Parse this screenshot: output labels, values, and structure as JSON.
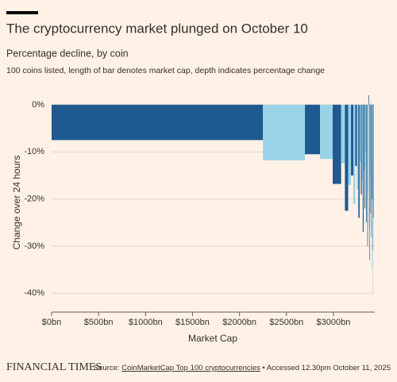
{
  "chart_data": {
    "type": "variwide",
    "title": "The cryptocurrency market plunged on October 10",
    "subtitle": "Percentage decline, by coin",
    "description": "100 coins listed, length of bar denotes market cap, depth indicates percentage change",
    "y_label": "Change over 24 hours",
    "x_label": "Market Cap",
    "colors": [
      "#1e5a91",
      "#9ad3e8"
    ],
    "market_cap": [
      2250,
      447,
      160,
      135,
      90,
      40,
      35,
      30,
      25,
      20,
      18,
      15,
      14,
      12,
      11,
      10,
      10,
      9,
      8,
      8,
      7,
      7,
      6,
      6,
      6,
      5,
      5,
      5,
      4,
      4,
      4,
      4,
      3,
      3,
      3,
      3,
      3
    ],
    "values": [
      -7.5,
      -11.8,
      -10.5,
      -11.5,
      -16.8,
      -12.4,
      -22.5,
      -17,
      -15,
      -21,
      -13,
      -18,
      -24,
      -12,
      -19,
      -16,
      -27,
      -14,
      -22,
      -10,
      -25,
      -20,
      -30,
      -18,
      2,
      -26,
      -33,
      -15,
      -23,
      1,
      -28,
      -35,
      -20,
      -12,
      -31,
      -40,
      -24
    ],
    "xlim": [
      0,
      3440
    ],
    "ylim": [
      -44,
      2
    ],
    "xticks": [
      {
        "value": 0,
        "label": "$0bn"
      },
      {
        "value": 500,
        "label": "$500bn"
      },
      {
        "value": 1000,
        "label": "$1000bn"
      },
      {
        "value": 1500,
        "label": "$1500bn"
      },
      {
        "value": 2000,
        "label": "$2000bn"
      },
      {
        "value": 2500,
        "label": "$2500bn"
      },
      {
        "value": 3000,
        "label": "$3000bn"
      }
    ],
    "yticks": [
      {
        "value": 0,
        "label": "0%"
      },
      {
        "value": -10,
        "label": "-10%"
      },
      {
        "value": -20,
        "label": "-20%"
      },
      {
        "value": -30,
        "label": "-30%"
      },
      {
        "value": -40,
        "label": "-40%"
      }
    ],
    "grid": true,
    "brand": "FINANCIAL TIMES",
    "source_prefix": "Source:",
    "source_link": "CoinMarketCap Top 100 cryptocurrencies",
    "source_suffix": "• Accessed 12.30pm October 11, 2025"
  }
}
